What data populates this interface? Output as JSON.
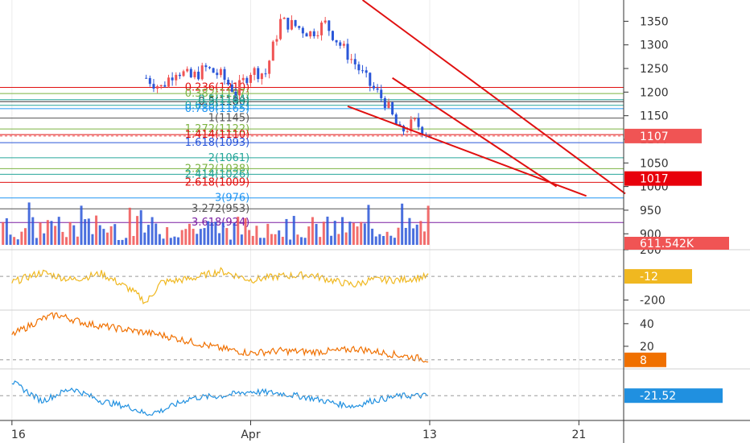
{
  "colors": {
    "up": "#f05454",
    "down": "#2a56d8",
    "price_badge": "#f05454",
    "level_badge": "#e8000b",
    "trendline": "#e01010",
    "osc1": "#f0b820",
    "osc2": "#f07000",
    "osc3": "#2090e0",
    "grid": "#ececec",
    "axis": "#333333"
  },
  "x_axis": {
    "ticks": [
      {
        "label": "16",
        "x": 0
      },
      {
        "label": "Apr",
        "x": 16
      },
      {
        "label": "13",
        "x": 28
      },
      {
        "label": "21",
        "x": 38
      }
    ],
    "range": [
      -0.8,
      41
    ]
  },
  "price_axis": {
    "ticks": [
      "1350",
      "1300",
      "1250",
      "1200",
      "1150",
      "1100",
      "1050",
      "1000",
      "950",
      "900"
    ],
    "current_price": "1107",
    "level_price": "1017",
    "volume_label": "611.542K"
  },
  "chart_data": [
    {
      "type": "line",
      "name": "price",
      "ylim": [
        880,
        1395
      ],
      "x_range": [
        -0.8,
        41
      ],
      "points": [
        [
          9,
          1230
        ],
        [
          10,
          1210
        ],
        [
          11,
          1248
        ],
        [
          12,
          1230
        ],
        [
          13,
          1250
        ],
        [
          14,
          1235
        ],
        [
          15,
          1200
        ],
        [
          16,
          1245
        ],
        [
          17,
          1240
        ],
        [
          18,
          1350
        ],
        [
          19,
          1340
        ],
        [
          20,
          1325
        ],
        [
          21,
          1345
        ],
        [
          22,
          1300
        ],
        [
          23,
          1260
        ],
        [
          24,
          1215
        ],
        [
          25,
          1180
        ],
        [
          26,
          1115
        ],
        [
          27,
          1135
        ],
        [
          28,
          1110
        ]
      ],
      "fib_levels": [
        {
          "label": "0.5(1180)",
          "value": 1180,
          "color": "#333333"
        },
        {
          "label": "0.236(1210)",
          "value": 1210,
          "color": "#e01010"
        },
        {
          "label": "0.382(1197)",
          "value": 1197,
          "color": "#7cb342"
        },
        {
          "label": "0.5(1184)",
          "value": 1184,
          "color": "#26a69a"
        },
        {
          "label": "0.618(1172)",
          "value": 1172,
          "color": "#26a69a"
        },
        {
          "label": "0.786(1165)",
          "value": 1165,
          "color": "#2196f3"
        },
        {
          "label": "1(1145)",
          "value": 1145,
          "color": "#555555"
        },
        {
          "label": "1.272(1122)",
          "value": 1122,
          "color": "#7cb342"
        },
        {
          "label": "1.414(1110)",
          "value": 1110,
          "color": "#e01010"
        },
        {
          "label": "1.618(1093)",
          "value": 1093,
          "color": "#2a56d8"
        },
        {
          "label": "2(1061)",
          "value": 1061,
          "color": "#26a69a"
        },
        {
          "label": "2.272(1038)",
          "value": 1038,
          "color": "#7cb342"
        },
        {
          "label": "2.414(1026)",
          "value": 1026,
          "color": "#26a69a"
        },
        {
          "label": "2.618(1009)",
          "value": 1009,
          "color": "#e01010"
        },
        {
          "label": "3(976)",
          "value": 976,
          "color": "#2196f3"
        },
        {
          "label": "3.272(953)",
          "value": 953,
          "color": "#555555"
        },
        {
          "label": "3.618(924)",
          "value": 924,
          "color": "#7b1fa2"
        }
      ]
    },
    {
      "type": "line",
      "name": "",
      "ylim": [
        -280,
        200
      ],
      "ticks": [
        "200",
        "-200"
      ],
      "last_value": "-12",
      "points": [
        [
          0,
          -60
        ],
        [
          2,
          20
        ],
        [
          4,
          -40
        ],
        [
          6,
          10
        ],
        [
          8,
          -120
        ],
        [
          9,
          -220
        ],
        [
          10,
          -60
        ],
        [
          12,
          -30
        ],
        [
          14,
          30
        ],
        [
          16,
          -40
        ],
        [
          18,
          -10
        ],
        [
          20,
          0
        ],
        [
          22,
          -60
        ],
        [
          23,
          -80
        ],
        [
          24,
          -40
        ],
        [
          26,
          -40
        ],
        [
          28,
          -12
        ]
      ]
    },
    {
      "type": "line",
      "name": "",
      "ylim": [
        0,
        52
      ],
      "ticks": [
        "40",
        "20"
      ],
      "last_value": "8",
      "points": [
        [
          0,
          30
        ],
        [
          2,
          44
        ],
        [
          3,
          48
        ],
        [
          5,
          40
        ],
        [
          8,
          34
        ],
        [
          10,
          30
        ],
        [
          12,
          24
        ],
        [
          14,
          18
        ],
        [
          16,
          14
        ],
        [
          18,
          16
        ],
        [
          20,
          15
        ],
        [
          22,
          16
        ],
        [
          23,
          18
        ],
        [
          24,
          16
        ],
        [
          26,
          12
        ],
        [
          28,
          8
        ]
      ]
    },
    {
      "type": "line",
      "name": "",
      "ylim": [
        -60,
        20
      ],
      "last_value": "-21.52",
      "points": [
        [
          0,
          0
        ],
        [
          2,
          -30
        ],
        [
          4,
          -10
        ],
        [
          6,
          -30
        ],
        [
          8,
          -40
        ],
        [
          9,
          -50
        ],
        [
          10,
          -45
        ],
        [
          12,
          -25
        ],
        [
          14,
          -22
        ],
        [
          16,
          -15
        ],
        [
          18,
          -18
        ],
        [
          20,
          -25
        ],
        [
          22,
          -35
        ],
        [
          23,
          -38
        ],
        [
          24,
          -30
        ],
        [
          26,
          -22
        ],
        [
          28,
          -21.52
        ]
      ]
    }
  ]
}
